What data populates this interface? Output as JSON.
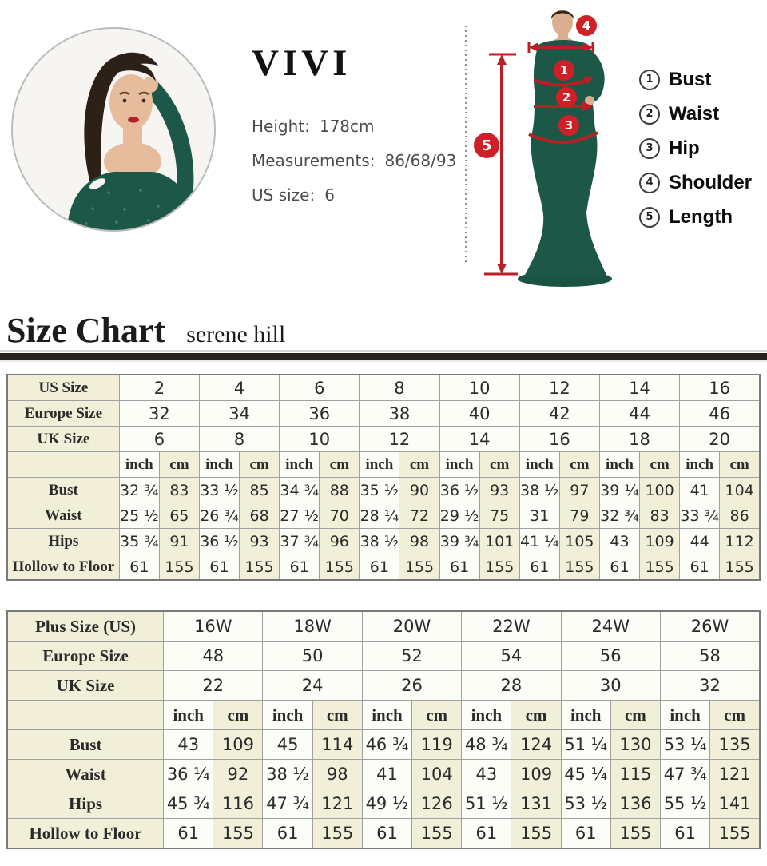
{
  "model": {
    "brand": "VIVI",
    "height_label": "Height:",
    "height_value": "178cm",
    "measurements_label": "Measurements:",
    "measurements_value": "86/68/93",
    "us_size_label": "US size:",
    "us_size_value": "6"
  },
  "diagram": {
    "badges": {
      "bust": "1",
      "waist": "2",
      "hip": "3",
      "shoulder": "4",
      "length": "5"
    },
    "legend": [
      {
        "num": "1",
        "label": "Bust"
      },
      {
        "num": "2",
        "label": "Waist"
      },
      {
        "num": "3",
        "label": "Hip"
      },
      {
        "num": "4",
        "label": "Shoulder"
      },
      {
        "num": "5",
        "label": "Length"
      }
    ]
  },
  "heading": {
    "title": "Size Chart",
    "subtitle": "serene hill"
  },
  "colors": {
    "accent_red": "#c32026",
    "cream_cell": "#f2efd9",
    "dress_green": "#1d5747",
    "rule_dark": "#2a211a"
  },
  "chart_data": [
    {
      "type": "table",
      "name": "standard-size-chart",
      "units": [
        "inch",
        "cm"
      ],
      "size_rows": [
        {
          "label": "US Size",
          "values": [
            "2",
            "4",
            "6",
            "8",
            "10",
            "12",
            "14",
            "16"
          ]
        },
        {
          "label": "Europe Size",
          "values": [
            "32",
            "34",
            "36",
            "38",
            "40",
            "42",
            "44",
            "46"
          ]
        },
        {
          "label": "UK Size",
          "values": [
            "6",
            "8",
            "10",
            "12",
            "14",
            "16",
            "18",
            "20"
          ]
        }
      ],
      "measure_rows": [
        {
          "label": "Bust",
          "pairs": [
            [
              "32 ¾",
              "83"
            ],
            [
              "33 ½",
              "85"
            ],
            [
              "34 ¾",
              "88"
            ],
            [
              "35 ½",
              "90"
            ],
            [
              "36 ½",
              "93"
            ],
            [
              "38 ½",
              "97"
            ],
            [
              "39 ¼",
              "100"
            ],
            [
              "41",
              "104"
            ]
          ]
        },
        {
          "label": "Waist",
          "pairs": [
            [
              "25 ½",
              "65"
            ],
            [
              "26 ¾",
              "68"
            ],
            [
              "27 ½",
              "70"
            ],
            [
              "28 ¼",
              "72"
            ],
            [
              "29 ½",
              "75"
            ],
            [
              "31",
              "79"
            ],
            [
              "32 ¾",
              "83"
            ],
            [
              "33 ¾",
              "86"
            ]
          ]
        },
        {
          "label": "Hips",
          "pairs": [
            [
              "35 ¾",
              "91"
            ],
            [
              "36 ½",
              "93"
            ],
            [
              "37 ¾",
              "96"
            ],
            [
              "38 ½",
              "98"
            ],
            [
              "39 ¾",
              "101"
            ],
            [
              "41 ¼",
              "105"
            ],
            [
              "43",
              "109"
            ],
            [
              "44",
              "112"
            ]
          ]
        },
        {
          "label": "Hollow to Floor",
          "pairs": [
            [
              "61",
              "155"
            ],
            [
              "61",
              "155"
            ],
            [
              "61",
              "155"
            ],
            [
              "61",
              "155"
            ],
            [
              "61",
              "155"
            ],
            [
              "61",
              "155"
            ],
            [
              "61",
              "155"
            ],
            [
              "61",
              "155"
            ]
          ]
        }
      ]
    },
    {
      "type": "table",
      "name": "plus-size-chart",
      "units": [
        "inch",
        "cm"
      ],
      "size_rows": [
        {
          "label": "Plus Size (US)",
          "values": [
            "16W",
            "18W",
            "20W",
            "22W",
            "24W",
            "26W"
          ]
        },
        {
          "label": "Europe Size",
          "values": [
            "48",
            "50",
            "52",
            "54",
            "56",
            "58"
          ]
        },
        {
          "label": "UK Size",
          "values": [
            "22",
            "24",
            "26",
            "28",
            "30",
            "32"
          ]
        }
      ],
      "measure_rows": [
        {
          "label": "Bust",
          "pairs": [
            [
              "43",
              "109"
            ],
            [
              "45",
              "114"
            ],
            [
              "46 ¾",
              "119"
            ],
            [
              "48 ¾",
              "124"
            ],
            [
              "51 ¼",
              "130"
            ],
            [
              "53 ¼",
              "135"
            ]
          ]
        },
        {
          "label": "Waist",
          "pairs": [
            [
              "36 ¼",
              "92"
            ],
            [
              "38 ½",
              "98"
            ],
            [
              "41",
              "104"
            ],
            [
              "43",
              "109"
            ],
            [
              "45 ¼",
              "115"
            ],
            [
              "47 ¾",
              "121"
            ]
          ]
        },
        {
          "label": "Hips",
          "pairs": [
            [
              "45 ¾",
              "116"
            ],
            [
              "47 ¾",
              "121"
            ],
            [
              "49 ½",
              "126"
            ],
            [
              "51 ½",
              "131"
            ],
            [
              "53 ½",
              "136"
            ],
            [
              "55 ½",
              "141"
            ]
          ]
        },
        {
          "label": "Hollow to Floor",
          "pairs": [
            [
              "61",
              "155"
            ],
            [
              "61",
              "155"
            ],
            [
              "61",
              "155"
            ],
            [
              "61",
              "155"
            ],
            [
              "61",
              "155"
            ],
            [
              "61",
              "155"
            ]
          ]
        }
      ]
    }
  ]
}
